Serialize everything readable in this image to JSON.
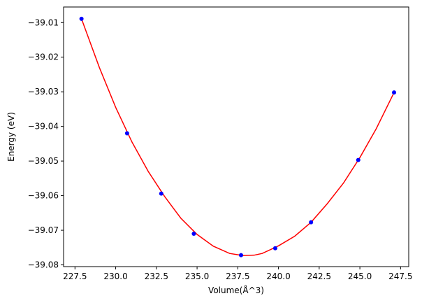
{
  "chart_data": {
    "type": "scatter",
    "title": "",
    "xlabel": "Volume(Å^3)",
    "ylabel": "Energy (eV)",
    "xlim": [
      226.8,
      248.0
    ],
    "ylim": [
      -39.0805,
      -39.0055
    ],
    "x_ticks": [
      227.5,
      230.0,
      232.5,
      235.0,
      237.5,
      240.0,
      242.5,
      245.0,
      247.5
    ],
    "x_tick_labels": [
      "227.5",
      "230.0",
      "232.5",
      "235.0",
      "237.5",
      "240.0",
      "242.5",
      "245.0",
      "247.5"
    ],
    "y_ticks": [
      -39.01,
      -39.02,
      -39.03,
      -39.04,
      -39.05,
      -39.06,
      -39.07,
      -39.08
    ],
    "y_tick_labels": [
      "−39.01",
      "−39.02",
      "−39.03",
      "−39.04",
      "−39.05",
      "−39.06",
      "−39.07",
      "−39.08"
    ],
    "grid": false,
    "series": [
      {
        "kind": "points",
        "color": "#0000ff",
        "x": [
          227.9,
          230.7,
          232.8,
          234.8,
          237.7,
          239.8,
          242.0,
          244.9,
          247.1
        ],
        "y": [
          -39.0089,
          -39.042,
          -39.0594,
          -39.071,
          -39.0772,
          -39.0752,
          -39.0677,
          -39.0497,
          -39.0302
        ]
      },
      {
        "kind": "fit-curve",
        "color": "#ff0000",
        "x": [
          227.9,
          229.0,
          230.0,
          231.0,
          232.0,
          233.0,
          234.0,
          235.0,
          236.0,
          237.0,
          237.8,
          238.5,
          239.0,
          240.0,
          241.0,
          242.0,
          243.0,
          244.0,
          245.0,
          246.0,
          247.1
        ],
        "y": [
          -39.0089,
          -39.023,
          -39.0345,
          -39.0445,
          -39.053,
          -39.0602,
          -39.0665,
          -39.0712,
          -39.0746,
          -39.0767,
          -39.0773,
          -39.0772,
          -39.0767,
          -39.0745,
          -39.0717,
          -39.0677,
          -39.0623,
          -39.0563,
          -39.049,
          -39.0407,
          -39.0302
        ]
      }
    ]
  }
}
